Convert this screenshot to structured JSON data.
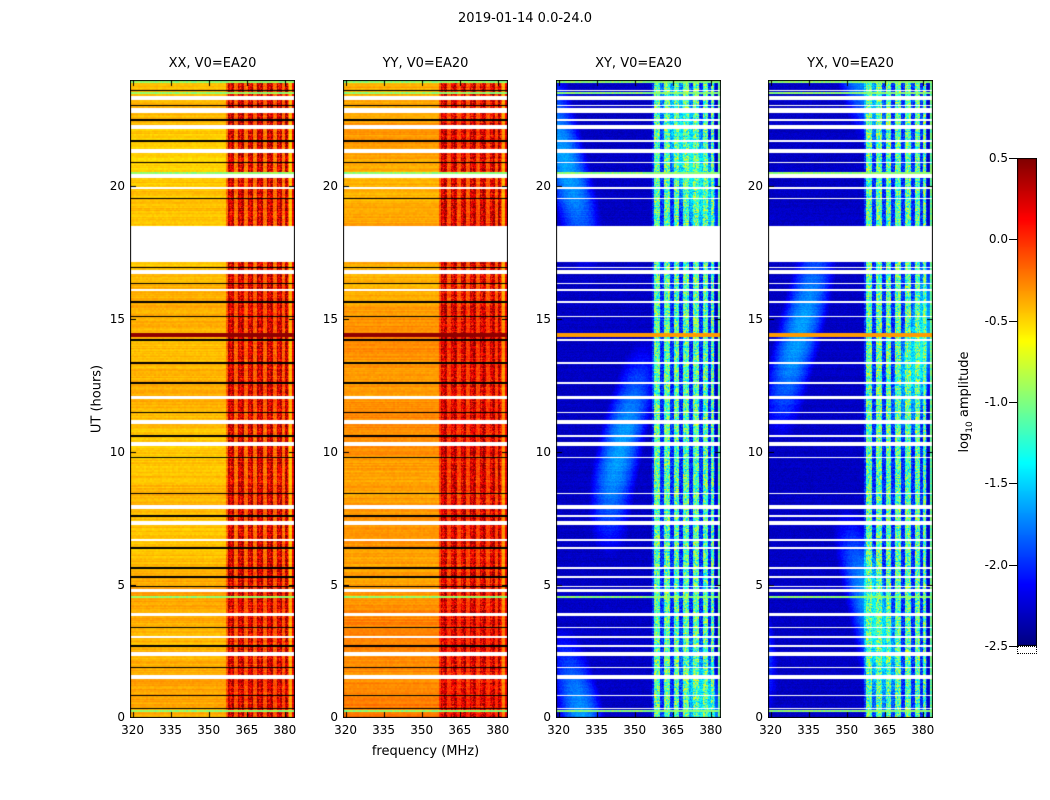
{
  "figure": {
    "title": "2019-01-14 0.0-24.0",
    "xlabel": "frequency (MHz)",
    "ylabel": "UT (hours)"
  },
  "colorbar": {
    "label_prefix": "log",
    "label_sub": "10",
    "label_suffix": " amplitude",
    "ticks": [
      "0.5",
      "0.0",
      "-0.5",
      "-1.0",
      "-1.5",
      "-2.0",
      "-2.5"
    ]
  },
  "chart_data": {
    "type": "heatmap",
    "title": "2019-01-14 0.0-24.0",
    "xlabel": "frequency (MHz)",
    "ylabel": "UT (hours)",
    "x_range": [
      319,
      384
    ],
    "y_range": [
      0,
      24
    ],
    "x_ticks": [
      320,
      335,
      350,
      365,
      380
    ],
    "y_ticks": [
      0,
      5,
      10,
      15,
      20
    ],
    "colormap": "jet",
    "clim": [
      -2.5,
      0.5
    ],
    "colorbar_label": "log10 amplitude",
    "colorbar_ticks": [
      0.5,
      0.0,
      -0.5,
      -1.0,
      -1.5,
      -2.0,
      -2.5
    ],
    "grid": false,
    "panels": [
      {
        "label": "XX, V0=EA20",
        "kind": "auto",
        "base_level": -0.45,
        "warm_gradient": 0.05,
        "rfi_level": 0.25
      },
      {
        "label": "YY, V0=EA20",
        "kind": "auto",
        "base_level": -0.38,
        "warm_gradient": 0.1,
        "rfi_level": 0.25
      },
      {
        "label": "XY, V0=EA20",
        "kind": "cross",
        "base_level": -2.3,
        "warm_gradient": 0.0,
        "rfi_level": -1.1
      },
      {
        "label": "YX, V0=EA20",
        "kind": "cross",
        "base_level": -2.3,
        "warm_gradient": 0.0,
        "rfi_level": -1.1
      }
    ],
    "features": {
      "rfi_band_mhz": [
        357,
        381.5
      ],
      "rfi_stripes_mhz": [
        [
          357.5,
          360
        ],
        [
          361.5,
          364
        ],
        [
          365.5,
          367.5
        ],
        [
          369,
          371.5
        ],
        [
          373,
          375.5
        ],
        [
          377,
          379
        ],
        [
          380,
          381.3
        ]
      ],
      "rfi_line_mhz": 383.3,
      "gaps_ut": [
        [
          23.25,
          23.4
        ],
        [
          22.75,
          22.95
        ],
        [
          22.15,
          22.3
        ],
        [
          21.25,
          21.4
        ],
        [
          20.3,
          20.45
        ],
        [
          19.9,
          19.98
        ],
        [
          17.15,
          18.5
        ],
        [
          16.7,
          16.85
        ],
        [
          16.05,
          16.15
        ],
        [
          12.0,
          12.1
        ],
        [
          11.05,
          11.2
        ],
        [
          10.25,
          10.4
        ],
        [
          7.85,
          8.0
        ],
        [
          7.25,
          7.4
        ],
        [
          6.65,
          6.75
        ],
        [
          4.75,
          4.85
        ],
        [
          3.85,
          3.95
        ],
        [
          3.0,
          3.1
        ],
        [
          2.35,
          2.5
        ],
        [
          1.45,
          1.6
        ]
      ],
      "thin_lines_ut": [
        0.35,
        0.85,
        1.9,
        2.7,
        3.4,
        4.95,
        5.3,
        5.65,
        6.4,
        7.6,
        8.45,
        9.8,
        10.6,
        11.5,
        12.6,
        13.35,
        14.22,
        15.1,
        15.65,
        16.35,
        16.95,
        19.55,
        20.9,
        21.7,
        22.5,
        23.05,
        23.6
      ],
      "flare_ut": 14.42,
      "green_lines_ut": [
        23.92,
        23.5,
        20.5,
        4.55,
        0.25
      ]
    }
  }
}
